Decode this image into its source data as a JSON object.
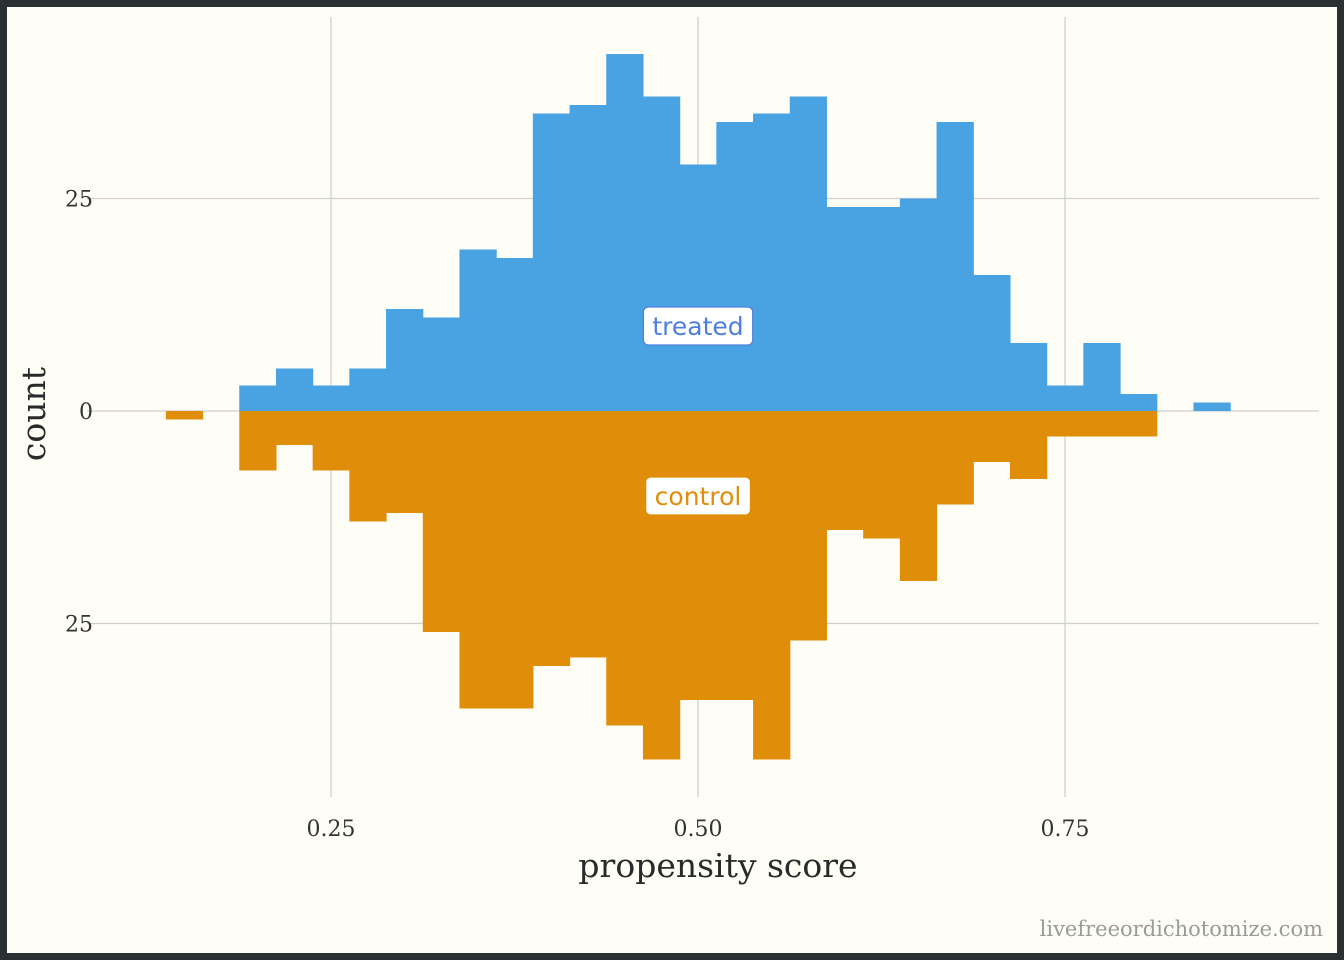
{
  "chart_data": {
    "type": "bar",
    "description_of_layout": "",
    "xlabel": "propensity score",
    "ylabel": "count",
    "x_ticks": [
      0.25,
      0.5,
      0.75
    ],
    "x_tick_labels": [
      "0.25",
      "0.50",
      "0.75"
    ],
    "y_ticks": [
      -25,
      0,
      25
    ],
    "y_tick_labels": [
      "25",
      "0",
      "25"
    ],
    "xlim": [
      0.1,
      0.9
    ],
    "ylim": [
      -43,
      43
    ],
    "bin_width": 0.025,
    "bin_centers": [
      0.15,
      0.175,
      0.2,
      0.225,
      0.25,
      0.275,
      0.3,
      0.325,
      0.35,
      0.375,
      0.4,
      0.425,
      0.45,
      0.475,
      0.5,
      0.525,
      0.55,
      0.575,
      0.6,
      0.625,
      0.65,
      0.675,
      0.7,
      0.725,
      0.75,
      0.775,
      0.8,
      0.825,
      0.85,
      0.875
    ],
    "series": [
      {
        "name": "treated",
        "color": "#49a3e2",
        "direction": "up",
        "values": [
          0,
          0,
          3,
          5,
          3,
          5,
          12,
          11,
          19,
          18,
          35,
          36,
          42,
          37,
          29,
          34,
          35,
          37,
          24,
          24,
          25,
          34,
          16,
          8,
          3,
          8,
          2,
          0,
          1,
          0
        ]
      },
      {
        "name": "control",
        "color": "#e08e0a",
        "direction": "down",
        "values": [
          1,
          0,
          7,
          4,
          7,
          13,
          12,
          26,
          35,
          35,
          30,
          29,
          37,
          41,
          34,
          34,
          41,
          27,
          14,
          15,
          20,
          11,
          6,
          8,
          3,
          3,
          3,
          0,
          0,
          0
        ]
      }
    ],
    "annotations": [
      {
        "text": "treated",
        "x": 0.5,
        "y": 10,
        "color": "#4f7fdc"
      },
      {
        "text": "control",
        "x": 0.5,
        "y": -10,
        "color": "#e08e0a"
      }
    ],
    "grid": true,
    "legend": "none"
  },
  "watermark": "livefreeordichotomize.com",
  "colors": {
    "background": "#fffef6",
    "frame": "#2b3033",
    "grid": "#cfcfcf"
  }
}
